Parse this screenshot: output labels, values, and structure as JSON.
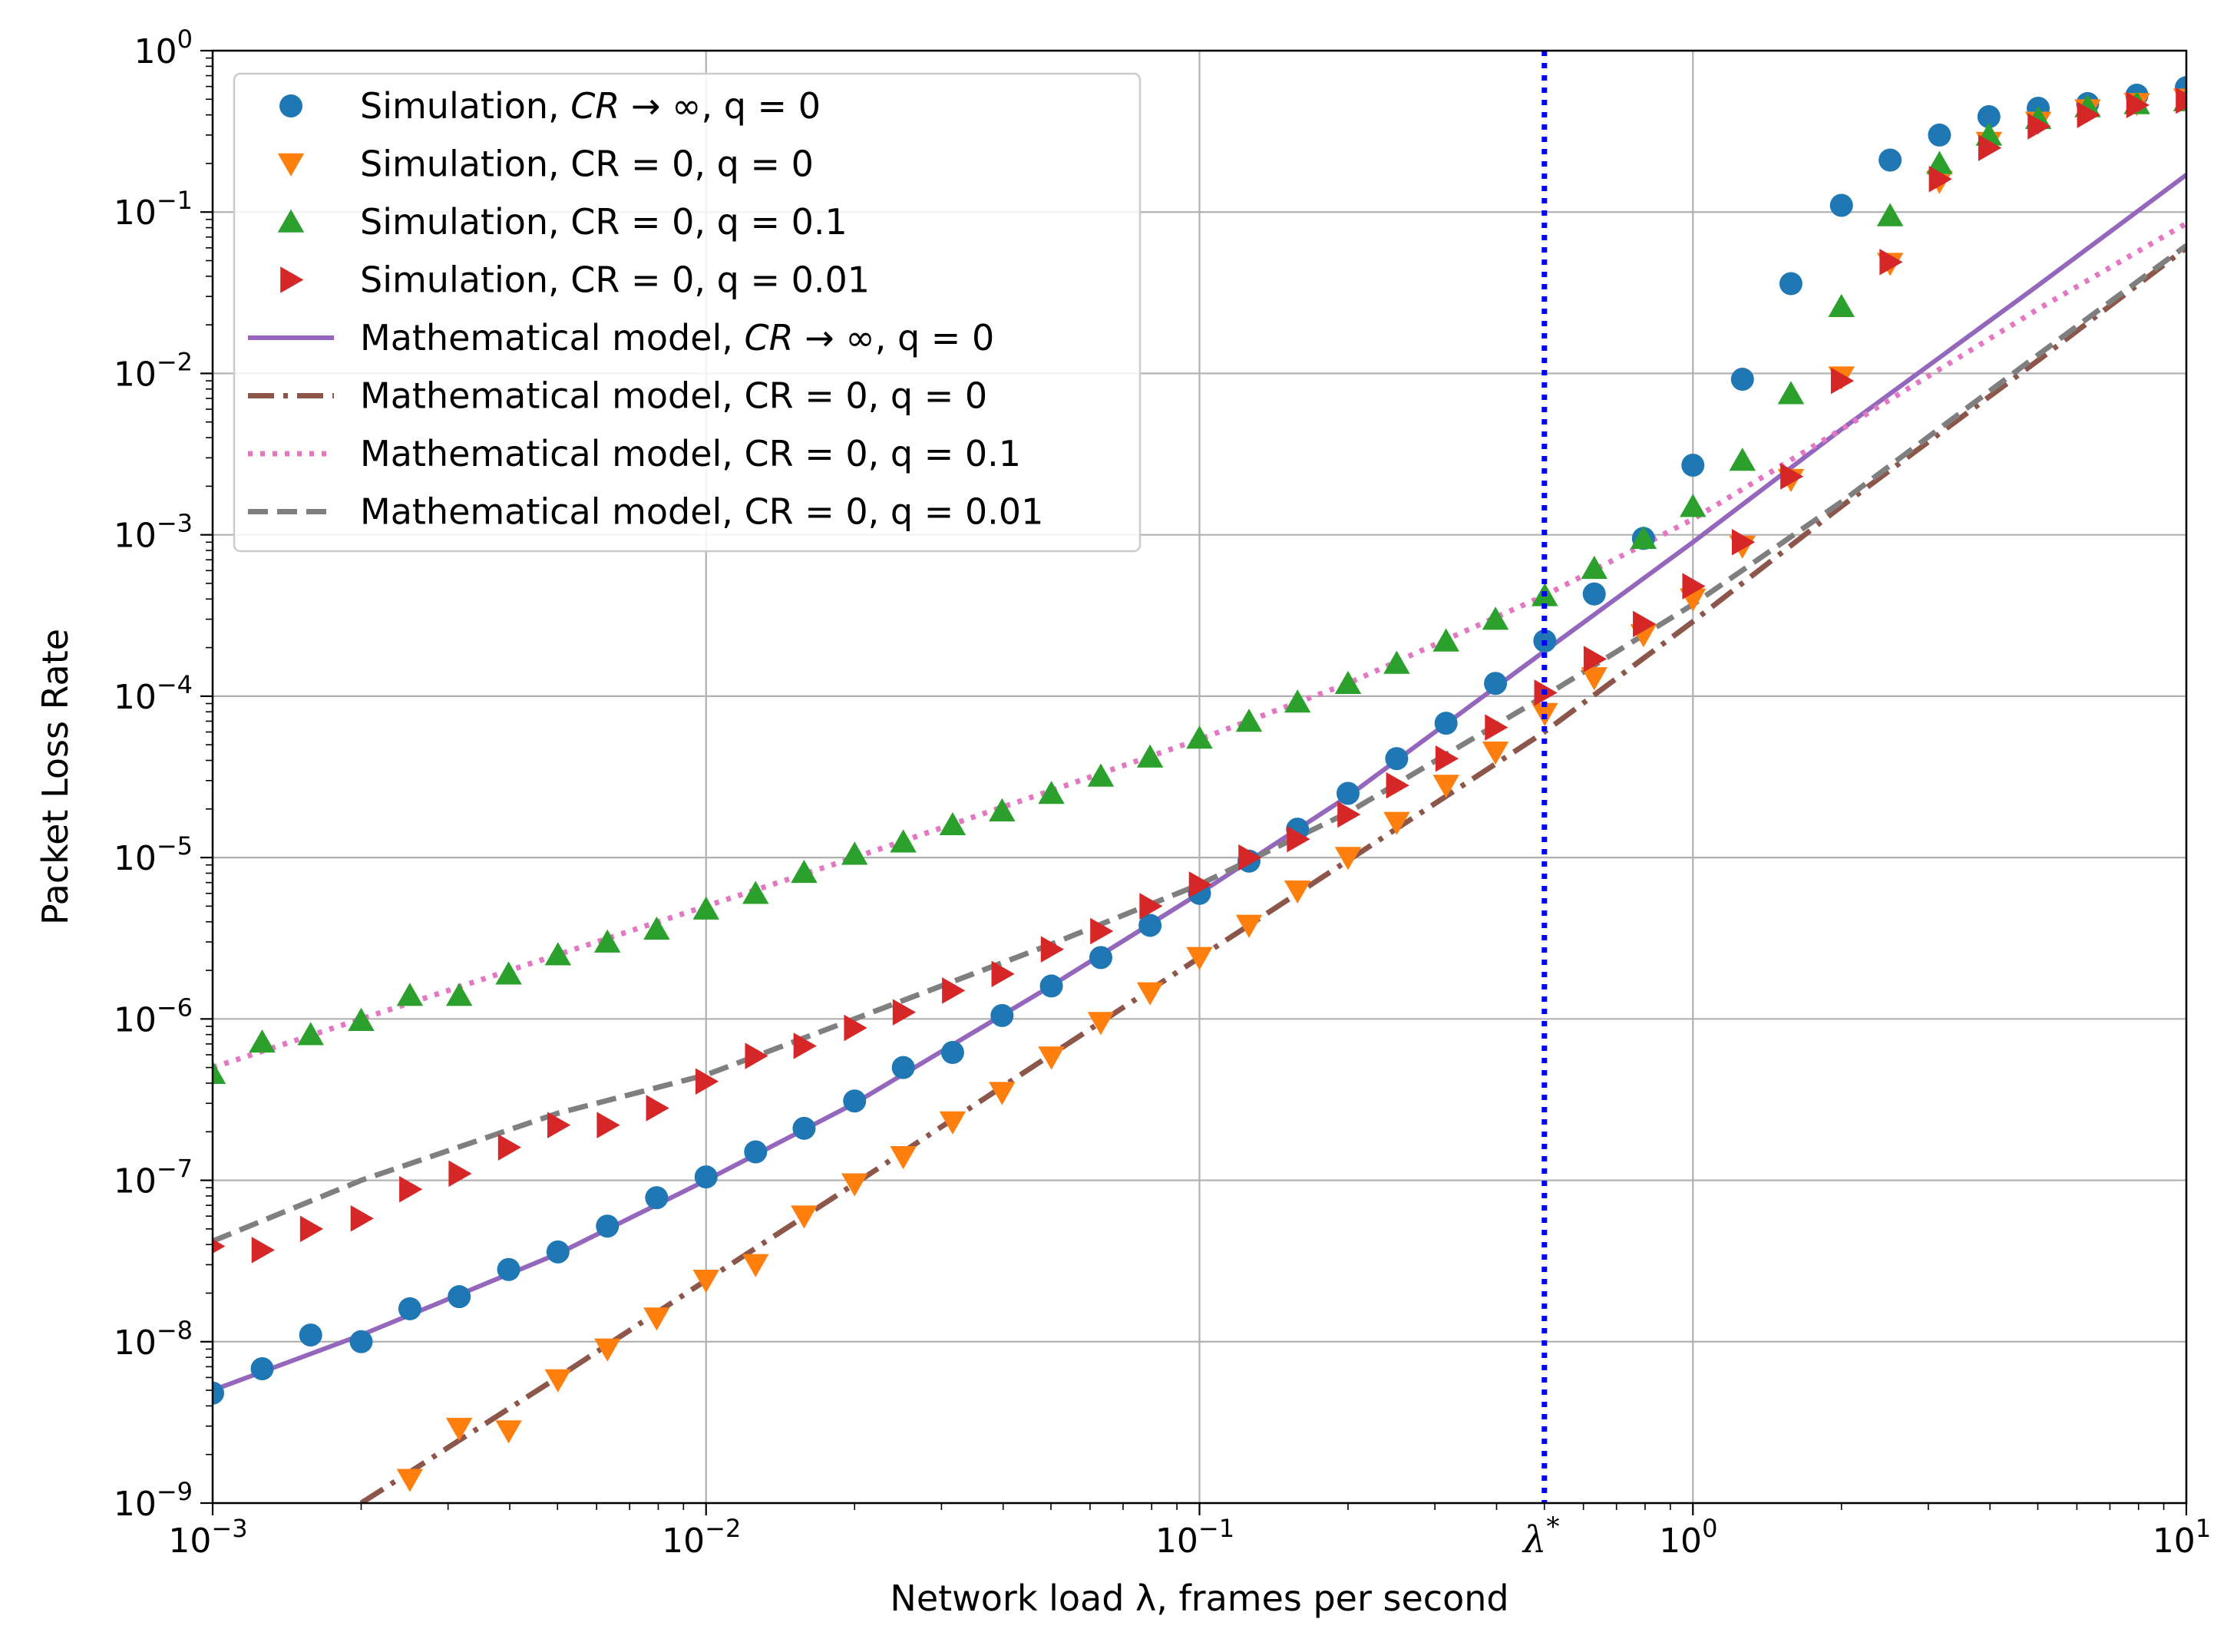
{
  "chart_data": {
    "type": "scatter",
    "title": "",
    "xlabel": "Network load λ, frames per second",
    "ylabel": "Packet Loss Rate",
    "xscale": "log",
    "yscale": "log",
    "xlim": [
      0.001,
      10
    ],
    "ylim": [
      1e-09,
      1
    ],
    "grid": true,
    "legend_position": "top-left",
    "x_ticks": [
      {
        "value": 0.001,
        "base": "10",
        "exp": "−3"
      },
      {
        "value": 0.01,
        "base": "10",
        "exp": "−2"
      },
      {
        "value": 0.1,
        "base": "10",
        "exp": "−1"
      },
      {
        "value": 1,
        "base": "10",
        "exp": "0"
      },
      {
        "value": 10,
        "base": "10",
        "exp": "1"
      }
    ],
    "y_ticks": [
      {
        "value": 1,
        "base": "10",
        "exp": "0"
      },
      {
        "value": 0.1,
        "base": "10",
        "exp": "−1"
      },
      {
        "value": 0.01,
        "base": "10",
        "exp": "−2"
      },
      {
        "value": 0.001,
        "base": "10",
        "exp": "−3"
      },
      {
        "value": 0.0001,
        "base": "10",
        "exp": "−4"
      },
      {
        "value": 1e-05,
        "base": "10",
        "exp": "−5"
      },
      {
        "value": 1e-06,
        "base": "10",
        "exp": "−6"
      },
      {
        "value": 1e-07,
        "base": "10",
        "exp": "−7"
      },
      {
        "value": 1e-08,
        "base": "10",
        "exp": "−8"
      },
      {
        "value": 1e-09,
        "base": "10",
        "exp": "−9"
      }
    ],
    "annotation": {
      "text": "λ",
      "sup": "*",
      "x": 0.5
    },
    "series": [
      {
        "name": "Simulation, CR → ∞, q = 0",
        "kind": "marker",
        "marker": "circle",
        "color": "#1f77b4",
        "x": [
          0.001,
          0.00126,
          0.00158,
          0.002,
          0.00251,
          0.00316,
          0.00398,
          0.00501,
          0.00631,
          0.00794,
          0.01,
          0.0126,
          0.0158,
          0.02,
          0.0251,
          0.0316,
          0.0398,
          0.0501,
          0.0631,
          0.0794,
          0.1,
          0.126,
          0.158,
          0.2,
          0.251,
          0.316,
          0.398,
          0.501,
          0.631,
          0.794,
          1.0,
          1.26,
          1.58,
          2.0,
          2.51,
          3.16,
          3.98,
          5.01,
          6.31,
          7.94,
          10
        ],
        "y": [
          4.8e-09,
          6.8e-09,
          1.1e-08,
          1e-08,
          1.6e-08,
          1.9e-08,
          2.8e-08,
          3.6e-08,
          5.2e-08,
          7.8e-08,
          1.05e-07,
          1.5e-07,
          2.1e-07,
          3.1e-07,
          5e-07,
          6.2e-07,
          1.05e-06,
          1.6e-06,
          2.4e-06,
          3.8e-06,
          6e-06,
          9.5e-06,
          1.5e-05,
          2.5e-05,
          4.1e-05,
          6.8e-05,
          0.00012,
          0.00022,
          0.00043,
          0.00095,
          0.0027,
          0.0092,
          0.036,
          0.11,
          0.21,
          0.3,
          0.39,
          0.44,
          0.47,
          0.53,
          0.59
        ]
      },
      {
        "name": "Simulation, CR = 0, q = 0",
        "kind": "marker",
        "marker": "tri-down",
        "color": "#ff7f0e",
        "x": [
          0.00251,
          0.00316,
          0.00398,
          0.00501,
          0.00631,
          0.00794,
          0.01,
          0.0126,
          0.0158,
          0.02,
          0.0251,
          0.0316,
          0.0398,
          0.0501,
          0.0631,
          0.0794,
          0.1,
          0.126,
          0.158,
          0.2,
          0.251,
          0.316,
          0.398,
          0.501,
          0.631,
          0.794,
          1.0,
          1.26,
          1.58,
          2.0,
          2.51,
          3.16,
          3.98,
          5.01,
          6.31,
          7.94,
          10
        ],
        "y": [
          1.4e-09,
          2.9e-09,
          2.8e-09,
          5.8e-09,
          9e-09,
          1.4e-08,
          2.4e-08,
          3e-08,
          6e-08,
          9.5e-08,
          1.4e-07,
          2.3e-07,
          3.5e-07,
          5.8e-07,
          9.5e-07,
          1.45e-06,
          2.4e-06,
          3.8e-06,
          6.2e-06,
          1e-05,
          1.65e-05,
          2.8e-05,
          4.5e-05,
          7.8e-05,
          0.00013,
          0.00024,
          0.0004,
          0.00085,
          0.0022,
          0.0095,
          0.048,
          0.155,
          0.27,
          0.36,
          0.43,
          0.47,
          0.5
        ]
      },
      {
        "name": "Simulation, CR = 0, q = 0.1",
        "kind": "marker",
        "marker": "tri-up",
        "color": "#2ca02c",
        "x": [
          0.001,
          0.00126,
          0.00158,
          0.002,
          0.00251,
          0.00316,
          0.00398,
          0.00501,
          0.00631,
          0.00794,
          0.01,
          0.0126,
          0.0158,
          0.02,
          0.0251,
          0.0316,
          0.0398,
          0.0501,
          0.0631,
          0.0794,
          0.1,
          0.126,
          0.158,
          0.2,
          0.251,
          0.316,
          0.398,
          0.501,
          0.631,
          0.794,
          1.0,
          1.26,
          1.58,
          2.0,
          2.51,
          3.16,
          3.98,
          5.01,
          6.31,
          7.94,
          10
        ],
        "y": [
          4.6e-07,
          7.2e-07,
          8e-07,
          9.8e-07,
          1.4e-06,
          1.4e-06,
          1.9e-06,
          2.5e-06,
          3e-06,
          3.6e-06,
          4.8e-06,
          6e-06,
          8.1e-06,
          1.05e-05,
          1.25e-05,
          1.6e-05,
          1.95e-05,
          2.5e-05,
          3.2e-05,
          4.2e-05,
          5.5e-05,
          7e-05,
          9.2e-05,
          0.00012,
          0.00016,
          0.00022,
          0.0003,
          0.00042,
          0.00062,
          0.00095,
          0.0015,
          0.0029,
          0.0075,
          0.026,
          0.095,
          0.2,
          0.3,
          0.38,
          0.45,
          0.47,
          0.49
        ]
      },
      {
        "name": "Simulation, CR = 0, q = 0.01",
        "kind": "marker",
        "marker": "tri-right",
        "color": "#d62728",
        "x": [
          0.001,
          0.00126,
          0.00158,
          0.002,
          0.00251,
          0.00316,
          0.00398,
          0.00501,
          0.00631,
          0.00794,
          0.01,
          0.0126,
          0.0158,
          0.02,
          0.0251,
          0.0316,
          0.0398,
          0.0501,
          0.0631,
          0.0794,
          0.1,
          0.126,
          0.158,
          0.2,
          0.251,
          0.316,
          0.398,
          0.501,
          0.631,
          0.794,
          1.0,
          1.26,
          1.58,
          2.0,
          2.51,
          3.16,
          3.98,
          5.01,
          6.31,
          7.94,
          10
        ],
        "y": [
          3.9e-08,
          3.7e-08,
          5e-08,
          5.8e-08,
          8.8e-08,
          1.1e-07,
          1.6e-07,
          2.2e-07,
          2.2e-07,
          2.8e-07,
          4.1e-07,
          5.9e-07,
          6.8e-07,
          8.8e-07,
          1.1e-06,
          1.5e-06,
          1.9e-06,
          2.7e-06,
          3.5e-06,
          5e-06,
          6.8e-06,
          1e-05,
          1.3e-05,
          1.85e-05,
          2.8e-05,
          4.1e-05,
          6.4e-05,
          0.000105,
          0.00017,
          0.00028,
          0.00048,
          0.0009,
          0.0023,
          0.009,
          0.049,
          0.16,
          0.25,
          0.34,
          0.4,
          0.46,
          0.49
        ]
      },
      {
        "name": "Mathematical model, CR → ∞, q = 0",
        "kind": "line",
        "dash": "solid",
        "color": "#9467bd",
        "x": [
          0.001,
          0.002,
          0.005,
          0.01,
          0.02,
          0.05,
          0.1,
          0.2,
          0.5,
          1.0,
          2.0,
          5.0,
          10
        ],
        "y": [
          5e-09,
          1.1e-08,
          3.5e-08,
          1e-07,
          3e-07,
          1.6e-06,
          6e-06,
          2.4e-05,
          0.00019,
          0.0009,
          0.0045,
          0.035,
          0.17
        ]
      },
      {
        "name": "Mathematical model, CR = 0, q = 0",
        "kind": "line",
        "dash": "dashdot",
        "color": "#8c564b",
        "x": [
          0.002,
          0.005,
          0.01,
          0.02,
          0.05,
          0.1,
          0.2,
          0.5,
          1.0,
          2.0,
          5.0,
          10
        ],
        "y": [
          1e-09,
          6e-09,
          2.4e-08,
          9.5e-08,
          6e-07,
          2.4e-06,
          9.6e-06,
          6e-05,
          0.00029,
          0.0015,
          0.012,
          0.06
        ]
      },
      {
        "name": "Mathematical model, CR = 0, q = 0.1",
        "kind": "line",
        "dash": "dotted",
        "color": "#e377c2",
        "x": [
          0.001,
          0.002,
          0.005,
          0.01,
          0.02,
          0.05,
          0.1,
          0.2,
          0.5,
          1.0,
          2.0,
          5.0,
          10
        ],
        "y": [
          5e-07,
          1e-06,
          2.5e-06,
          5e-06,
          1e-05,
          2.6e-05,
          5.4e-05,
          0.00012,
          0.00042,
          0.00125,
          0.0045,
          0.025,
          0.085
        ]
      },
      {
        "name": "Mathematical model, CR = 0, q = 0.01",
        "kind": "line",
        "dash": "dashed",
        "color": "#7f7f7f",
        "x": [
          0.001,
          0.002,
          0.005,
          0.01,
          0.02,
          0.05,
          0.1,
          0.2,
          0.5,
          1.0,
          2.0,
          5.0,
          10
        ],
        "y": [
          4.2e-08,
          1e-07,
          2.6e-07,
          4.5e-07,
          1e-06,
          2.9e-06,
          6.8e-06,
          1.9e-05,
          0.0001,
          0.00037,
          0.0016,
          0.013,
          0.062
        ]
      }
    ],
    "legend": [
      {
        "series": 0,
        "text": "Simulation, ",
        "math": "CR",
        "rest": " → ∞, q = 0"
      },
      {
        "series": 1,
        "text": "Simulation, CR = 0, q = 0",
        "math": "",
        "rest": ""
      },
      {
        "series": 2,
        "text": "Simulation, CR = 0, q = 0.1",
        "math": "",
        "rest": ""
      },
      {
        "series": 3,
        "text": "Simulation, CR = 0, q = 0.01",
        "math": "",
        "rest": ""
      },
      {
        "series": 4,
        "text": "Mathematical model, ",
        "math": "CR",
        "rest": " → ∞, q = 0"
      },
      {
        "series": 5,
        "text": "Mathematical model, CR = 0, q = 0",
        "math": "",
        "rest": ""
      },
      {
        "series": 6,
        "text": "Mathematical model, CR = 0, q = 0.1",
        "math": "",
        "rest": ""
      },
      {
        "series": 7,
        "text": "Mathematical model, CR = 0, q = 0.01",
        "math": "",
        "rest": ""
      }
    ],
    "vline": {
      "x": 0.5,
      "color": "#0000ff",
      "style": "dotted"
    }
  }
}
